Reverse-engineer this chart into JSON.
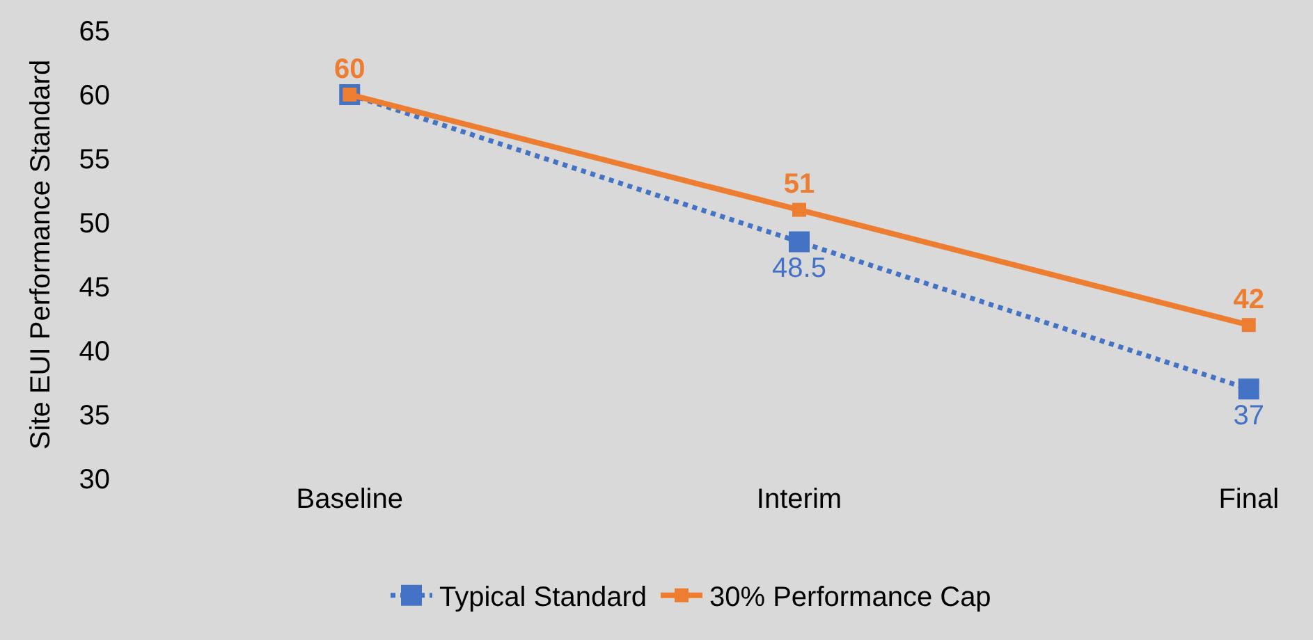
{
  "chart_data": {
    "type": "line",
    "ylabel": "Site EUI Performance Standard",
    "categories": [
      "Baseline",
      "Interim",
      "Final"
    ],
    "series": [
      {
        "name": "Typical Standard",
        "color": "#4472c4",
        "values": [
          60,
          48.5,
          37
        ],
        "line_style": "dotted",
        "value_labels": [
          null,
          "48.5",
          "37"
        ]
      },
      {
        "name": "30% Performance Cap",
        "color": "#ed7d31",
        "values": [
          60,
          51,
          42
        ],
        "line_style": "solid",
        "value_labels": [
          "60",
          "51",
          "42"
        ]
      }
    ],
    "ylim": [
      30,
      65
    ],
    "yticks": [
      30,
      35,
      40,
      45,
      50,
      55,
      60,
      65
    ],
    "grid": false,
    "legend": "bottom",
    "marker": "square"
  }
}
